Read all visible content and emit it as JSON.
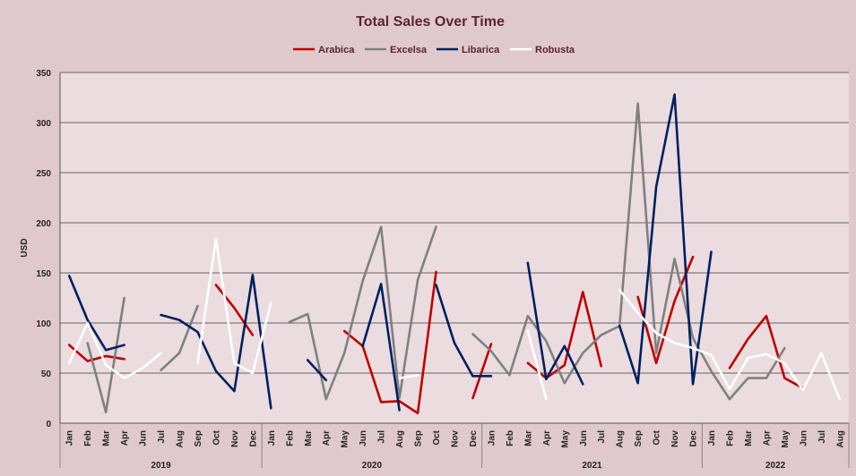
{
  "chart_data": {
    "type": "line",
    "title": "Total Sales Over Time",
    "ylabel": "USD",
    "xlabel": "",
    "ylim": [
      0,
      350
    ],
    "yticks": [
      0,
      50,
      100,
      150,
      200,
      250,
      300,
      350
    ],
    "grid": true,
    "legend_position": "top",
    "categories": [
      "Jan",
      "Feb",
      "Mar",
      "Apr",
      "Jun",
      "Jul",
      "Aug",
      "Sep",
      "Oct",
      "Nov",
      "Dec",
      "Jan",
      "Feb",
      "Mar",
      "Apr",
      "May",
      "Jun",
      "Jul",
      "Aug",
      "Sep",
      "Oct",
      "Nov",
      "Dec",
      "Jan",
      "Feb",
      "Mar",
      "Apr",
      "May",
      "Jun",
      "Jul",
      "Aug",
      "Sep",
      "Oct",
      "Nov",
      "Dec",
      "Jan",
      "Feb",
      "Mar",
      "Apr",
      "May",
      "Jun",
      "Jul",
      "Aug"
    ],
    "years": [
      {
        "label": "2019",
        "start": 0,
        "end": 10
      },
      {
        "label": "2020",
        "start": 11,
        "end": 22
      },
      {
        "label": "2021",
        "start": 23,
        "end": 34
      },
      {
        "label": "2022",
        "start": 35,
        "end": 42
      }
    ],
    "series": [
      {
        "name": "Arabica",
        "color": "#c00000",
        "values": [
          78,
          62,
          67,
          64,
          null,
          null,
          null,
          null,
          138,
          115,
          88,
          null,
          null,
          null,
          null,
          92,
          77,
          21,
          22,
          10,
          151,
          null,
          25,
          79,
          null,
          60,
          45,
          58,
          131,
          57,
          null,
          126,
          60,
          122,
          166,
          null,
          55,
          84,
          107,
          45,
          35,
          null,
          null
        ]
      },
      {
        "name": "Excelsa",
        "color": "#808080",
        "values": [
          null,
          80,
          11,
          125,
          null,
          53,
          70,
          117,
          null,
          null,
          null,
          null,
          101,
          109,
          24,
          70,
          142,
          196,
          25,
          143,
          196,
          null,
          89,
          72,
          48,
          107,
          82,
          40,
          70,
          88,
          97,
          319,
          70,
          164,
          85,
          52,
          24,
          45,
          45,
          75,
          null,
          null,
          null
        ]
      },
      {
        "name": "Libarica",
        "color": "#002060",
        "values": [
          147,
          103,
          73,
          78,
          null,
          108,
          103,
          91,
          52,
          32,
          148,
          15,
          null,
          63,
          43,
          null,
          77,
          139,
          13,
          null,
          138,
          80,
          47,
          47,
          null,
          160,
          44,
          77,
          39,
          null,
          97,
          40,
          236,
          328,
          39,
          171,
          null,
          null,
          null,
          null,
          null,
          null,
          null
        ]
      },
      {
        "name": "Robusta",
        "color": "#ffffff",
        "values": [
          60,
          100,
          58,
          45,
          55,
          70,
          null,
          60,
          184,
          60,
          50,
          120,
          null,
          null,
          null,
          null,
          null,
          null,
          45,
          48,
          null,
          null,
          null,
          null,
          null,
          92,
          24,
          null,
          null,
          null,
          133,
          110,
          90,
          80,
          75,
          68,
          34,
          65,
          69,
          60,
          33,
          70,
          24
        ]
      }
    ]
  }
}
